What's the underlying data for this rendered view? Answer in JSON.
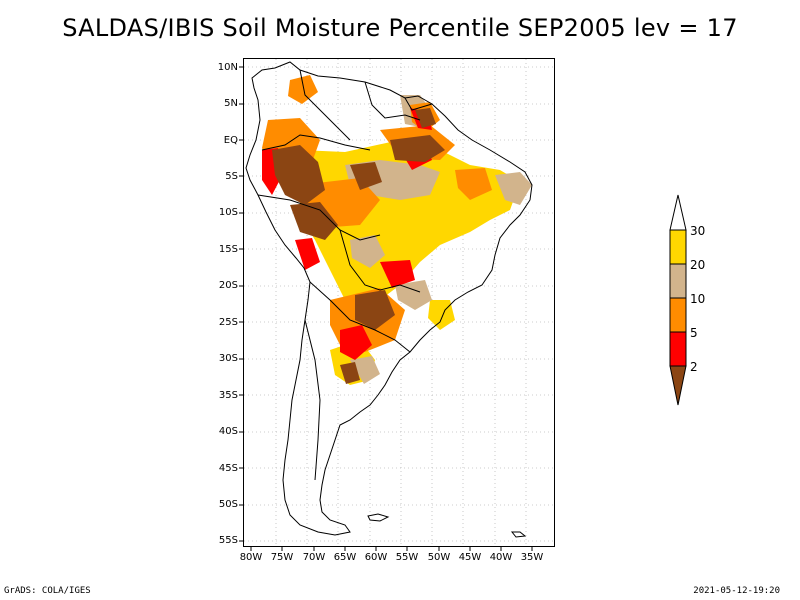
{
  "title": "SALDAS/IBIS Soil Moisture Percentile SEP2005 lev = 17",
  "lat_ticks": [
    "10N",
    "5N",
    "EQ",
    "5S",
    "10S",
    "15S",
    "20S",
    "25S",
    "30S",
    "35S",
    "40S",
    "45S",
    "50S",
    "55S"
  ],
  "lon_ticks": [
    "80W",
    "75W",
    "70W",
    "65W",
    "60W",
    "55W",
    "50W",
    "45W",
    "40W",
    "35W"
  ],
  "colorbar": {
    "labels": [
      "30",
      "20",
      "10",
      "5",
      "2"
    ],
    "colors": {
      "lt2": "#8b4513",
      "2to5": "#ff0000",
      "5to10": "#ff8c00",
      "10to20": "#d2b48c",
      "20to30": "#ffd700",
      "gt30": "#ffffff"
    }
  },
  "footer": {
    "left": "GrADS: COLA/IGES",
    "right": "2021-05-12-19:20"
  }
}
